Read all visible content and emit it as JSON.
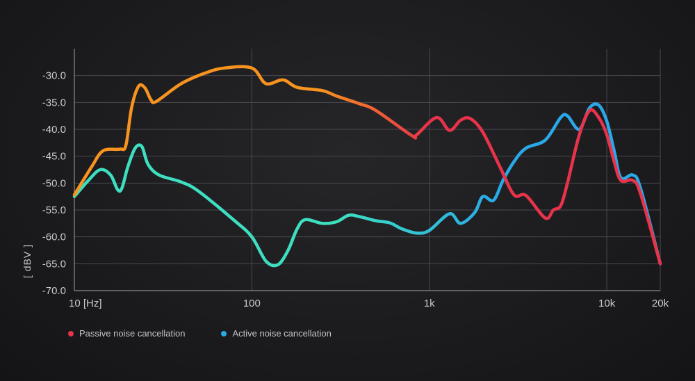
{
  "chart_data": {
    "type": "line",
    "x_scale": "log",
    "xlim": [
      10,
      20000
    ],
    "ylim": [
      -70,
      -25
    ],
    "grid": true,
    "ylabel": "[ dBV ]",
    "x_ticks": [
      {
        "value": 10,
        "label": "10 [Hz]"
      },
      {
        "value": 100,
        "label": "100"
      },
      {
        "value": 1000,
        "label": "1k"
      },
      {
        "value": 10000,
        "label": "10k"
      },
      {
        "value": 20000,
        "label": "20k"
      }
    ],
    "y_ticks": [
      {
        "value": -30,
        "label": "-30.0"
      },
      {
        "value": -35,
        "label": "-35.0"
      },
      {
        "value": -40,
        "label": "-40.0"
      },
      {
        "value": -45,
        "label": "-45.0"
      },
      {
        "value": -50,
        "label": "-50.0"
      },
      {
        "value": -55,
        "label": "-55.0"
      },
      {
        "value": -60,
        "label": "-60.0"
      },
      {
        "value": -65,
        "label": "-65.0"
      },
      {
        "value": -70,
        "label": "-70.0"
      }
    ],
    "legend_position": "bottom-left",
    "series": [
      {
        "name": "Passive noise cancellation",
        "color": "#e8334a",
        "gradient_colors": [
          "#f7931e",
          "#e8334a"
        ],
        "points": [
          [
            10,
            -52.2
          ],
          [
            12.5,
            -47
          ],
          [
            14.5,
            -44
          ],
          [
            18,
            -43.7
          ],
          [
            19.5,
            -43
          ],
          [
            21,
            -36
          ],
          [
            23,
            -32
          ],
          [
            25,
            -32.3
          ],
          [
            27,
            -34.5
          ],
          [
            29,
            -34.8
          ],
          [
            40,
            -31.5
          ],
          [
            55,
            -29.5
          ],
          [
            70,
            -28.6
          ],
          [
            100,
            -28.6
          ],
          [
            120,
            -31.5
          ],
          [
            150,
            -30.8
          ],
          [
            180,
            -32.2
          ],
          [
            250,
            -32.8
          ],
          [
            300,
            -33.8
          ],
          [
            400,
            -35.2
          ],
          [
            500,
            -36.5
          ],
          [
            800,
            -41.2
          ],
          [
            850,
            -41
          ],
          [
            1100,
            -37.8
          ],
          [
            1300,
            -40.2
          ],
          [
            1500,
            -38.3
          ],
          [
            1700,
            -38
          ],
          [
            2000,
            -40.5
          ],
          [
            2500,
            -47
          ],
          [
            3000,
            -52.2
          ],
          [
            3500,
            -52.3
          ],
          [
            4500,
            -56.5
          ],
          [
            5000,
            -55
          ],
          [
            5500,
            -54.2
          ],
          [
            6000,
            -50
          ],
          [
            7000,
            -41
          ],
          [
            8000,
            -36.5
          ],
          [
            9000,
            -37.8
          ],
          [
            10000,
            -41
          ],
          [
            11000,
            -46
          ],
          [
            12000,
            -49.5
          ],
          [
            14000,
            -49.5
          ],
          [
            15500,
            -52
          ],
          [
            20000,
            -65
          ]
        ]
      },
      {
        "name": "Active noise cancellation",
        "color": "#2aa8e8",
        "gradient_colors": [
          "#3ddfc0",
          "#2aa8e8"
        ],
        "points": [
          [
            10,
            -52.5
          ],
          [
            12,
            -49.5
          ],
          [
            14,
            -47.5
          ],
          [
            16,
            -48.5
          ],
          [
            17.5,
            -51.2
          ],
          [
            18.5,
            -51
          ],
          [
            20,
            -47
          ],
          [
            22,
            -43.5
          ],
          [
            24,
            -43.2
          ],
          [
            26,
            -46.5
          ],
          [
            30,
            -48.5
          ],
          [
            40,
            -49.8
          ],
          [
            50,
            -51.5
          ],
          [
            80,
            -57
          ],
          [
            100,
            -60
          ],
          [
            120,
            -64.5
          ],
          [
            140,
            -65.2
          ],
          [
            160,
            -62.5
          ],
          [
            180,
            -58.5
          ],
          [
            200,
            -56.8
          ],
          [
            250,
            -57.5
          ],
          [
            300,
            -57.2
          ],
          [
            350,
            -56
          ],
          [
            400,
            -56.2
          ],
          [
            500,
            -57
          ],
          [
            600,
            -57.4
          ],
          [
            700,
            -58.5
          ],
          [
            850,
            -59.3
          ],
          [
            1000,
            -58.8
          ],
          [
            1300,
            -55.7
          ],
          [
            1500,
            -57.5
          ],
          [
            1800,
            -55.5
          ],
          [
            2000,
            -52.5
          ],
          [
            2300,
            -53.2
          ],
          [
            2600,
            -49.5
          ],
          [
            3000,
            -46
          ],
          [
            3500,
            -43.5
          ],
          [
            4500,
            -42
          ],
          [
            5500,
            -37.8
          ],
          [
            6000,
            -37.5
          ],
          [
            7000,
            -40
          ],
          [
            8000,
            -36
          ],
          [
            9000,
            -35.5
          ],
          [
            10000,
            -38.5
          ],
          [
            11000,
            -44
          ],
          [
            12000,
            -49
          ],
          [
            14000,
            -48.5
          ],
          [
            15500,
            -51
          ],
          [
            20000,
            -65
          ]
        ]
      }
    ]
  }
}
